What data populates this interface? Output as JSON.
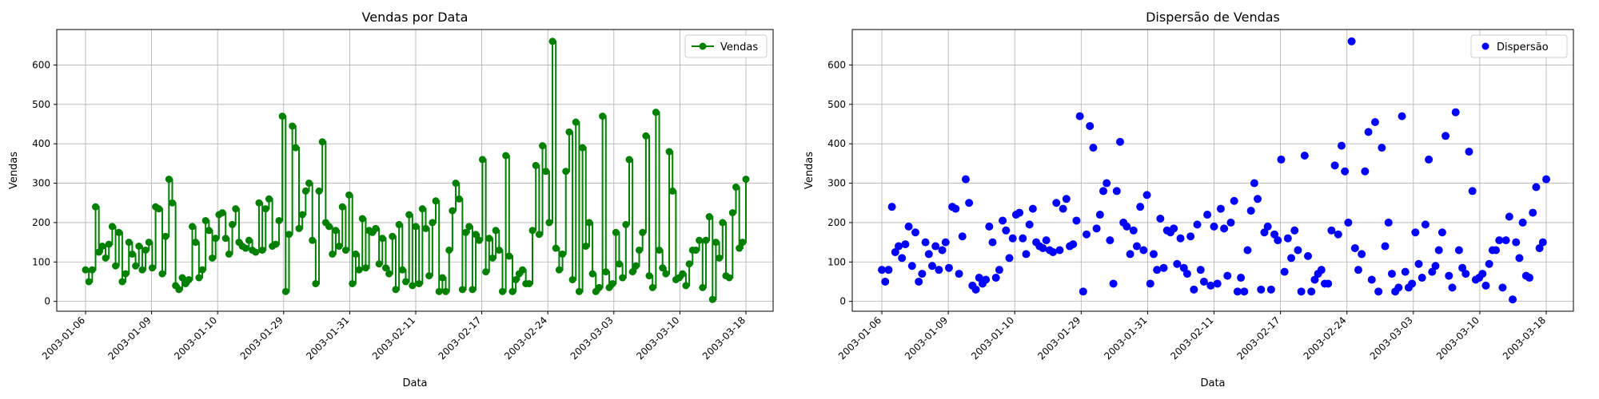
{
  "chart_data": [
    {
      "type": "line",
      "title": "Vendas por Data",
      "xlabel": "Data",
      "ylabel": "Vendas",
      "ylim": [
        -25,
        690
      ],
      "yticks": [
        0,
        100,
        200,
        300,
        400,
        500,
        600
      ],
      "x_tick_labels": [
        "2003-01-06",
        "2003-01-09",
        "2003-01-10",
        "2003-01-29",
        "2003-01-31",
        "2003-02-11",
        "2003-02-17",
        "2003-02-24",
        "2003-03-03",
        "2003-03-10",
        "2003-03-18"
      ],
      "grid": true,
      "legend": {
        "placement": "top-right",
        "entries": [
          "Vendas"
        ]
      },
      "series": [
        {
          "name": "Vendas",
          "color": "#008000",
          "style": "step-line-with-circle-markers",
          "values": [
            80,
            50,
            80,
            240,
            125,
            140,
            110,
            145,
            190,
            90,
            175,
            50,
            70,
            150,
            120,
            90,
            140,
            80,
            130,
            150,
            85,
            240,
            235,
            70,
            165,
            310,
            250,
            40,
            30,
            60,
            45,
            55,
            190,
            150,
            60,
            80,
            205,
            180,
            110,
            160,
            220,
            225,
            160,
            120,
            195,
            235,
            150,
            140,
            135,
            155,
            130,
            125,
            250,
            130,
            235,
            260,
            140,
            145,
            205,
            470,
            25,
            170,
            445,
            390,
            185,
            220,
            280,
            300,
            155,
            45,
            280,
            405,
            200,
            190,
            120,
            180,
            140,
            240,
            130,
            270,
            45,
            120,
            80,
            210,
            85,
            180,
            175,
            185,
            95,
            160,
            85,
            70,
            165,
            30,
            195,
            80,
            50,
            220,
            40,
            190,
            45,
            235,
            185,
            65,
            200,
            255,
            25,
            60,
            25,
            130,
            230,
            300,
            260,
            30,
            175,
            190,
            30,
            170,
            155,
            360,
            75,
            160,
            110,
            180,
            130,
            25,
            370,
            115,
            25,
            55,
            70,
            80,
            45,
            45,
            180,
            345,
            170,
            395,
            330,
            200,
            660,
            135,
            80,
            120,
            330,
            430,
            55,
            455,
            25,
            390,
            140,
            200,
            70,
            25,
            35,
            470,
            75,
            35,
            45,
            175,
            95,
            60,
            195,
            360,
            75,
            90,
            130,
            175,
            420,
            65,
            35,
            480,
            130,
            85,
            70,
            380,
            280,
            55,
            60,
            70,
            40,
            95,
            130,
            130,
            155,
            35,
            155,
            215,
            5,
            150,
            110,
            200,
            65,
            60,
            225,
            290,
            135,
            150,
            310
          ]
        }
      ]
    },
    {
      "type": "scatter",
      "title": "Dispersão de Vendas",
      "xlabel": "Data",
      "ylabel": "Vendas",
      "ylim": [
        -25,
        690
      ],
      "yticks": [
        0,
        100,
        200,
        300,
        400,
        500,
        600
      ],
      "x_tick_labels": [
        "2003-01-06",
        "2003-01-09",
        "2003-01-10",
        "2003-01-29",
        "2003-01-31",
        "2003-02-11",
        "2003-02-17",
        "2003-02-24",
        "2003-03-03",
        "2003-03-10",
        "2003-03-18"
      ],
      "grid": true,
      "legend": {
        "placement": "top-right",
        "entries": [
          "Dispersão"
        ]
      },
      "series": [
        {
          "name": "Dispersão",
          "color": "#0000ff",
          "style": "scatter",
          "values": [
            80,
            50,
            80,
            240,
            125,
            140,
            110,
            145,
            190,
            90,
            175,
            50,
            70,
            150,
            120,
            90,
            140,
            80,
            130,
            150,
            85,
            240,
            235,
            70,
            165,
            310,
            250,
            40,
            30,
            60,
            45,
            55,
            190,
            150,
            60,
            80,
            205,
            180,
            110,
            160,
            220,
            225,
            160,
            120,
            195,
            235,
            150,
            140,
            135,
            155,
            130,
            125,
            250,
            130,
            235,
            260,
            140,
            145,
            205,
            470,
            25,
            170,
            445,
            390,
            185,
            220,
            280,
            300,
            155,
            45,
            280,
            405,
            200,
            190,
            120,
            180,
            140,
            240,
            130,
            270,
            45,
            120,
            80,
            210,
            85,
            180,
            175,
            185,
            95,
            160,
            85,
            70,
            165,
            30,
            195,
            80,
            50,
            220,
            40,
            190,
            45,
            235,
            185,
            65,
            200,
            255,
            25,
            60,
            25,
            130,
            230,
            300,
            260,
            30,
            175,
            190,
            30,
            170,
            155,
            360,
            75,
            160,
            110,
            180,
            130,
            25,
            370,
            115,
            25,
            55,
            70,
            80,
            45,
            45,
            180,
            345,
            170,
            395,
            330,
            200,
            660,
            135,
            80,
            120,
            330,
            430,
            55,
            455,
            25,
            390,
            140,
            200,
            70,
            25,
            35,
            470,
            75,
            35,
            45,
            175,
            95,
            60,
            195,
            360,
            75,
            90,
            130,
            175,
            420,
            65,
            35,
            480,
            130,
            85,
            70,
            380,
            280,
            55,
            60,
            70,
            40,
            95,
            130,
            130,
            155,
            35,
            155,
            215,
            5,
            150,
            110,
            200,
            65,
            60,
            225,
            290,
            135,
            150,
            310
          ]
        }
      ]
    }
  ]
}
